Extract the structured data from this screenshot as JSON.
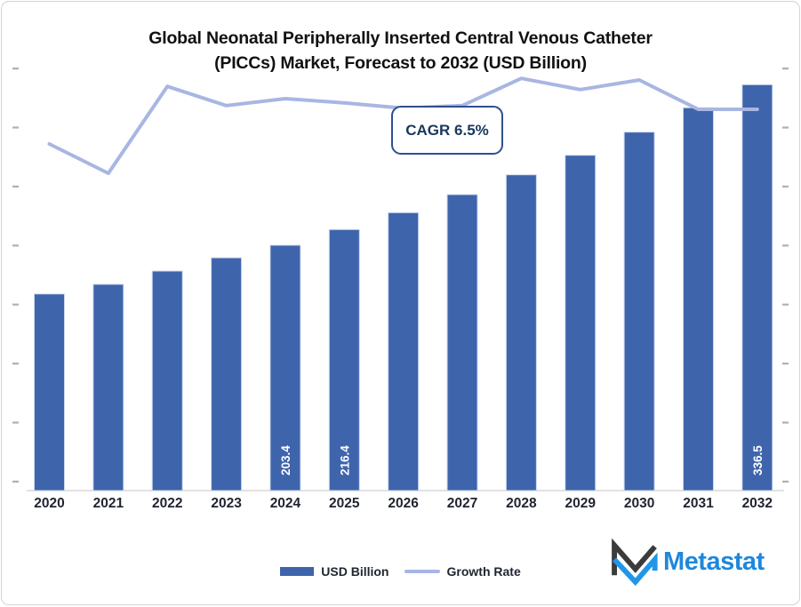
{
  "title": {
    "line1": "Global Neonatal Peripherally Inserted Central Venous Catheter",
    "line2": "(PICCs) Market, Forecast to 2032 (USD Billion)"
  },
  "annotation": {
    "cagr_label": "CAGR 6.5%"
  },
  "legend": {
    "bar_label": "USD Billion",
    "line_label": "Growth Rate"
  },
  "logo": {
    "text": "Metastat"
  },
  "colors": {
    "bar": "#3E64AC",
    "bar_edge": "#CDD9EE",
    "line": "#A8B6E2",
    "bar_value_label": "#FFFFFF",
    "axis_text": "#1F2430",
    "tick": "#B6AFA5",
    "baseline": "#D9D9D9",
    "cagr_border": "#2F4F8F",
    "cagr_text": "#17375E",
    "logo_blue": "#2196E8",
    "logo_dark": "#3B3B3B",
    "logo_wordmark_blue": "#1E87DC"
  },
  "chart_data": {
    "type": "bar",
    "combo": "bar + line (secondary axis)",
    "title": "Global Neonatal Peripherally Inserted Central Venous Catheter (PICCs) Market, Forecast to 2032 (USD Billion)",
    "categories": [
      "2020",
      "2021",
      "2022",
      "2023",
      "2024",
      "2025",
      "2026",
      "2027",
      "2028",
      "2029",
      "2030",
      "2031",
      "2032"
    ],
    "series": [
      {
        "name": "USD Billion",
        "type": "bar",
        "values": [
          163.0,
          171.0,
          182.0,
          193.0,
          203.4,
          216.4,
          230.4,
          245.4,
          261.8,
          278.0,
          297.2,
          317.4,
          336.5
        ],
        "data_labels_shown": {
          "2024": "203.4",
          "2025": "216.4",
          "2032": "336.5"
        }
      },
      {
        "name": "Growth Rate",
        "type": "line",
        "values_pct_estimated": [
          6.5,
          5.95,
          7.58,
          7.22,
          7.35,
          7.27,
          7.17,
          7.22,
          7.73,
          7.52,
          7.7,
          7.15,
          7.15
        ],
        "axis_tick_labels": "hidden"
      }
    ],
    "annotations": [
      "CAGR 6.5%"
    ],
    "value_axis_tick_labels": "hidden (tick marks only, both sides)",
    "gridlines": false,
    "legend_position": "bottom",
    "xlabel": "",
    "ylabel": ""
  }
}
